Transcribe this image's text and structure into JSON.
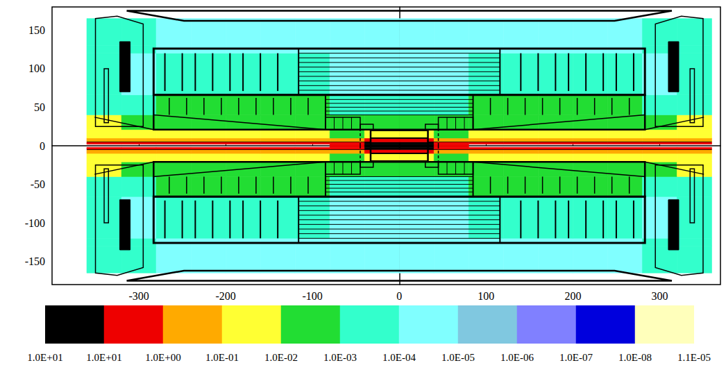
{
  "chart_data": {
    "type": "heatmap",
    "xlim": [
      -400,
      370
    ],
    "xticks": [
      -300,
      -200,
      -100,
      0,
      100,
      200,
      300
    ],
    "ylim": [
      -180,
      180
    ],
    "yticks": [
      -150,
      -100,
      -50,
      0,
      50,
      100,
      150
    ],
    "grid": false,
    "x_edges": [
      -360,
      -320,
      -280,
      -240,
      -200,
      -160,
      -120,
      -80,
      -40,
      0,
      40,
      80,
      120,
      160,
      200,
      240,
      280,
      320,
      360
    ],
    "y_edges": [
      -165,
      -130,
      -120,
      -66,
      -40,
      -21,
      -10,
      -5,
      -2,
      2,
      5,
      10,
      21,
      40,
      66,
      120,
      130,
      165
    ],
    "cells": [
      [
        0.0003,
        0.0003,
        3e-05,
        3e-05,
        3e-05,
        3e-05,
        3e-05,
        3e-05,
        3e-05,
        3e-05,
        3e-05,
        3e-05,
        3e-05,
        3e-05,
        3e-05,
        3e-05,
        0.0003,
        0.0003
      ],
      [
        0.0003,
        0.0003,
        3e-05,
        3e-05,
        3e-05,
        3e-05,
        3e-05,
        3e-05,
        3e-05,
        3e-05,
        3e-05,
        3e-05,
        3e-05,
        3e-05,
        3e-05,
        3e-05,
        0.0003,
        0.0003
      ],
      [
        0.0003,
        3e-05,
        0.0003,
        0.0003,
        0.0003,
        0.0003,
        0.0003,
        3e-05,
        3e-05,
        3e-05,
        3e-05,
        0.0003,
        0.0003,
        0.0003,
        0.0003,
        0.0003,
        3e-05,
        0.0003
      ],
      [
        0.0003,
        0.0003,
        0.003,
        0.003,
        0.003,
        0.003,
        0.003,
        0.0003,
        0.0003,
        0.0003,
        0.0003,
        0.003,
        0.003,
        0.003,
        0.003,
        0.003,
        0.0003,
        0.0003
      ],
      [
        0.03,
        0.003,
        0.003,
        0.003,
        0.003,
        0.003,
        0.003,
        0.003,
        0.003,
        0.003,
        0.003,
        0.003,
        0.003,
        0.003,
        0.003,
        0.003,
        0.003,
        0.03
      ],
      [
        0.03,
        0.03,
        0.03,
        0.03,
        0.03,
        0.03,
        0.03,
        0.003,
        0.03,
        0.03,
        0.003,
        0.03,
        0.03,
        0.03,
        0.03,
        0.03,
        0.03,
        0.03
      ],
      [
        0.3,
        0.3,
        0.3,
        0.3,
        0.3,
        0.3,
        0.3,
        0.3,
        3,
        3,
        0.3,
        0.3,
        0.3,
        0.3,
        0.3,
        0.3,
        0.3,
        0.3
      ],
      [
        3,
        3,
        3,
        3,
        3,
        3,
        3,
        3,
        20,
        20,
        3,
        3,
        3,
        3,
        3,
        3,
        3,
        3
      ],
      [
        null,
        null,
        null,
        null,
        null,
        null,
        null,
        3,
        20,
        20,
        3,
        null,
        null,
        null,
        null,
        null,
        null,
        null
      ],
      [
        3,
        3,
        3,
        3,
        3,
        3,
        3,
        3,
        20,
        20,
        3,
        3,
        3,
        3,
        3,
        3,
        3,
        3
      ],
      [
        0.3,
        0.3,
        0.3,
        0.3,
        0.3,
        0.3,
        0.3,
        0.3,
        3,
        3,
        0.3,
        0.3,
        0.3,
        0.3,
        0.3,
        0.3,
        0.3,
        0.3
      ],
      [
        0.03,
        0.03,
        0.03,
        0.03,
        0.03,
        0.03,
        0.03,
        0.003,
        0.03,
        0.03,
        0.003,
        0.03,
        0.03,
        0.03,
        0.03,
        0.03,
        0.03,
        0.03
      ],
      [
        0.03,
        0.003,
        0.003,
        0.003,
        0.003,
        0.003,
        0.003,
        0.003,
        0.003,
        0.003,
        0.003,
        0.003,
        0.003,
        0.003,
        0.003,
        0.003,
        0.003,
        0.03
      ],
      [
        0.0003,
        0.0003,
        0.003,
        0.003,
        0.003,
        0.003,
        0.003,
        0.0003,
        0.0003,
        0.0003,
        0.0003,
        0.003,
        0.003,
        0.003,
        0.003,
        0.003,
        0.0003,
        0.0003
      ],
      [
        0.0003,
        3e-05,
        0.0003,
        0.0003,
        0.0003,
        0.0003,
        0.0003,
        3e-05,
        3e-05,
        3e-05,
        3e-05,
        0.0003,
        0.0003,
        0.0003,
        0.0003,
        0.0003,
        3e-05,
        0.0003
      ],
      [
        0.0003,
        0.0003,
        3e-05,
        3e-05,
        3e-05,
        3e-05,
        3e-05,
        3e-05,
        3e-05,
        3e-05,
        3e-05,
        3e-05,
        3e-05,
        3e-05,
        3e-05,
        3e-05,
        0.0003,
        0.0003
      ],
      [
        0.0003,
        0.0003,
        3e-05,
        3e-05,
        3e-05,
        3e-05,
        3e-05,
        3e-05,
        3e-05,
        3e-05,
        3e-05,
        3e-05,
        3e-05,
        3e-05,
        3e-05,
        3e-05,
        0.0003,
        0.0003
      ]
    ],
    "colorbar": {
      "ticks": [
        {
          "value": 10,
          "label": "1.0E+01"
        },
        {
          "value": 10,
          "label": "1.0E+01"
        },
        {
          "value": 1,
          "label": "1.0E+00"
        },
        {
          "value": 0.1,
          "label": "1.0E-01"
        },
        {
          "value": 0.01,
          "label": "1.0E-02"
        },
        {
          "value": 0.001,
          "label": "1.0E-03"
        },
        {
          "value": 0.0001,
          "label": "1.0E-04"
        },
        {
          "value": 1e-05,
          "label": "1.0E-05"
        },
        {
          "value": 1e-06,
          "label": "1.0E-06"
        },
        {
          "value": 1e-07,
          "label": "1.0E-07"
        },
        {
          "value": 1e-08,
          "label": "1.0E-08"
        },
        {
          "value": 1.1e-05,
          "label": "1.1E-05"
        }
      ],
      "colors": [
        "#000000",
        "#ee0000",
        "#ffaa00",
        "#ffff33",
        "#22dd33",
        "#33ffcc",
        "#80ffff",
        "#80c8e0",
        "#8080ff",
        "#0000dd",
        "#ffffbb"
      ]
    }
  }
}
